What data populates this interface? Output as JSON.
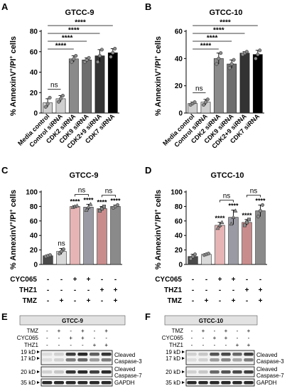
{
  "figure": {
    "panels": {
      "A": {
        "letter": "A",
        "title": "GTCC-9"
      },
      "B": {
        "letter": "B",
        "title": "GTCC-10"
      },
      "C": {
        "letter": "C",
        "title": "GTCC-9"
      },
      "D": {
        "letter": "D",
        "title": "GTCC-10"
      },
      "E": {
        "letter": "E",
        "title": "GTCC-9"
      },
      "F": {
        "letter": "F",
        "title": "GTCC-10"
      }
    },
    "ylabel_main": "% AnnexinV",
    "ylabel_mid": "/PI",
    "ylabel_tail": " cells",
    "ylabel_sup": "+",
    "sig": "****",
    "ns": "ns",
    "treatments": [
      "CYC065",
      "THZ1",
      "TMZ"
    ],
    "treatment_matrix": [
      [
        "-",
        "-",
        "+",
        "+",
        "-",
        "-"
      ],
      [
        "-",
        "-",
        "-",
        "-",
        "+",
        "+"
      ],
      [
        "-",
        "+",
        "-",
        "+",
        "-",
        "+"
      ]
    ],
    "blot_treatments": [
      "TMZ",
      "CYC065",
      "THZ1"
    ],
    "blot_matrix": [
      [
        "-",
        "+",
        "-",
        "+",
        "-",
        "+"
      ],
      [
        "-",
        "-",
        "+",
        "+",
        "-",
        "-"
      ],
      [
        "-",
        "-",
        "-",
        "-",
        "+",
        "+"
      ]
    ],
    "blot_rows": [
      {
        "marker": "19 kD",
        "label": ""
      },
      {
        "marker": "17 kD",
        "label": "Cleaved Caspase-3"
      },
      {
        "marker": "20 kD",
        "label": "Cleaved Caspase-7"
      },
      {
        "marker": "35 kD",
        "label": "GAPDH"
      }
    ]
  },
  "chart_data": [
    {
      "panel": "A",
      "type": "bar",
      "title": "GTCC-9",
      "ylabel": "% AnnexinV+/PI+ cells",
      "ylim": [
        0,
        80
      ],
      "yticks": [
        0,
        20,
        40,
        60,
        80
      ],
      "categories": [
        "Media control",
        "Control siRNA",
        "CDK2 siRNA",
        "CDK9 siRNA",
        "CDK2+9 siRNA",
        "CDK7 siRNA"
      ],
      "values": [
        10,
        14,
        53,
        52,
        56,
        59
      ],
      "errors": [
        4,
        3,
        3,
        2,
        6,
        4
      ],
      "colors": [
        "#cfcfcf",
        "#cfcfcf",
        "#8a8a8a",
        "#6e6e6e",
        "#333333",
        "#000000"
      ],
      "points": [
        [
          6,
          9,
          15
        ],
        [
          11,
          14,
          17
        ],
        [
          50,
          53,
          56
        ],
        [
          50,
          52,
          54
        ],
        [
          50,
          56,
          62
        ],
        [
          55,
          59,
          63
        ]
      ],
      "annotations": [
        "ns (Media control vs Control siRNA)",
        "**** vs CDK2 siRNA",
        "**** vs CDK9 siRNA",
        "**** vs CDK2+9 siRNA",
        "**** vs CDK7 siRNA"
      ]
    },
    {
      "panel": "B",
      "type": "bar",
      "title": "GTCC-10",
      "ylabel": "% AnnexinV+/PI+ cells",
      "ylim": [
        0,
        60
      ],
      "yticks": [
        0,
        20,
        40,
        60
      ],
      "categories": [
        "Media control",
        "Control siRNA",
        "CDK2 siRNA",
        "CDK9 siRNA",
        "CDK2+9 siRNA",
        "CDK7 siRNA"
      ],
      "values": [
        7,
        8,
        40,
        36,
        44,
        43
      ],
      "errors": [
        1,
        2,
        4,
        3,
        1,
        3
      ],
      "colors": [
        "#cfcfcf",
        "#cfcfcf",
        "#8a8a8a",
        "#6e6e6e",
        "#333333",
        "#000000"
      ],
      "points": [
        [
          6,
          7,
          8
        ],
        [
          6,
          8,
          10
        ],
        [
          36,
          40,
          44
        ],
        [
          33,
          36,
          39
        ],
        [
          43,
          44,
          45
        ],
        [
          40,
          43,
          46
        ]
      ],
      "annotations": [
        "ns (Media control vs Control siRNA)",
        "**** vs CDK2 siRNA",
        "**** vs CDK9 siRNA",
        "**** vs CDK2+9 siRNA",
        "**** vs CDK7 siRNA"
      ]
    },
    {
      "panel": "C",
      "type": "bar",
      "title": "GTCC-9",
      "ylabel": "% AnnexinV+/PI+ cells",
      "ylim": [
        0,
        100
      ],
      "yticks": [
        0,
        20,
        40,
        60,
        80,
        100
      ],
      "conditions": [
        "untreated",
        "TMZ",
        "CYC065",
        "CYC065+TMZ",
        "THZ1",
        "THZ1+TMZ"
      ],
      "values": [
        12,
        18,
        80,
        79,
        77,
        80
      ],
      "errors": [
        1,
        4,
        1,
        4,
        3,
        2
      ],
      "colors": [
        "#4a4a4a",
        "#d9d9d9",
        "#e6b4b4",
        "#9a9aa4",
        "#c98c8c",
        "#8a8a8a"
      ],
      "points": [
        [
          11,
          12,
          13
        ],
        [
          15,
          18,
          21
        ],
        [
          79,
          80,
          81
        ],
        [
          75,
          79,
          83
        ],
        [
          74,
          77,
          80
        ],
        [
          78,
          80,
          82
        ]
      ],
      "annotations": [
        "ns above TMZ",
        "**** above CYC065",
        "**** above CYC065+TMZ",
        "**** above THZ1",
        "**** above THZ1+TMZ",
        "ns CYC065 vs CYC065+TMZ",
        "ns THZ1 vs THZ1+TMZ"
      ]
    },
    {
      "panel": "D",
      "type": "bar",
      "title": "GTCC-10",
      "ylabel": "% AnnexinV+/PI+ cells",
      "ylim": [
        0,
        100
      ],
      "yticks": [
        0,
        20,
        40,
        60,
        80,
        100
      ],
      "conditions": [
        "untreated",
        "TMZ",
        "CYC065",
        "CYC065+TMZ",
        "THZ1",
        "THZ1+TMZ"
      ],
      "values": [
        11,
        14,
        54,
        65,
        58,
        74
      ],
      "errors": [
        3,
        1,
        4,
        10,
        4,
        8
      ],
      "colors": [
        "#4a4a4a",
        "#d9d9d9",
        "#e6b4b4",
        "#9a9aa4",
        "#c98c8c",
        "#8a8a8a"
      ],
      "points": [
        [
          8,
          11,
          14
        ],
        [
          13,
          14,
          15
        ],
        [
          50,
          54,
          58
        ],
        [
          56,
          65,
          74
        ],
        [
          54,
          58,
          62
        ],
        [
          66,
          74,
          82
        ]
      ],
      "annotations": [
        "**** above CYC065",
        "**** above CYC065+TMZ",
        "**** above THZ1",
        "**** above THZ1+TMZ",
        "ns CYC065 vs CYC065+TMZ",
        "ns THZ1 vs THZ1+TMZ"
      ]
    }
  ]
}
